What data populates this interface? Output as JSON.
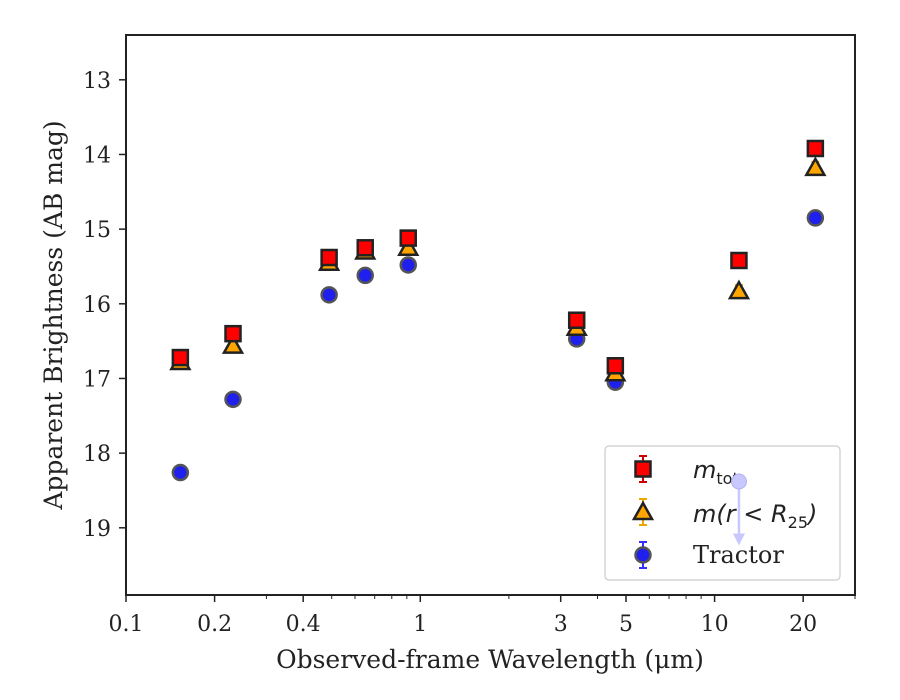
{
  "chart_data": {
    "type": "scatter",
    "xscale": "log",
    "xlim": [
      0.1,
      30
    ],
    "ylim": [
      19.9,
      12.4
    ],
    "y_inverted": true,
    "xlabel": "Observed-frame Wavelength (μm)",
    "ylabel": "Apparent Brightness (AB mag)",
    "xtick_labels": [
      {
        "value": 0.1,
        "label": "0.1"
      },
      {
        "value": 0.2,
        "label": "0.2"
      },
      {
        "value": 0.4,
        "label": "0.4"
      },
      {
        "value": 1,
        "label": "1"
      },
      {
        "value": 3,
        "label": "3"
      },
      {
        "value": 5,
        "label": "5"
      },
      {
        "value": 10,
        "label": "10"
      },
      {
        "value": 20,
        "label": "20"
      }
    ],
    "ytick_labels": [
      {
        "value": 13,
        "label": "13"
      },
      {
        "value": 14,
        "label": "14"
      },
      {
        "value": 15,
        "label": "15"
      },
      {
        "value": 16,
        "label": "16"
      },
      {
        "value": 17,
        "label": "17"
      },
      {
        "value": 18,
        "label": "18"
      },
      {
        "value": 19,
        "label": "19"
      }
    ],
    "legend_position": "lower right",
    "series": [
      {
        "legend_label": "m_tot",
        "marker": "square",
        "face": "#ff0000",
        "edge": "#222222",
        "err": "#cc0000",
        "x": [
          0.153,
          0.231,
          0.49,
          0.65,
          0.91,
          3.4,
          4.6,
          12.1,
          22
        ],
        "y": [
          16.72,
          16.4,
          15.38,
          15.25,
          15.12,
          16.22,
          16.83,
          15.42,
          13.92
        ]
      },
      {
        "legend_label": "m(r<R25)",
        "marker": "triangle",
        "face": "#ffa500",
        "edge": "#222222",
        "err": "#e8a800",
        "x": [
          0.153,
          0.231,
          0.49,
          0.65,
          0.91,
          3.4,
          4.6,
          12.1,
          22
        ],
        "y": [
          16.78,
          16.56,
          15.45,
          15.3,
          15.25,
          16.32,
          16.93,
          15.83,
          14.18
        ]
      },
      {
        "legend_label": "Tractor",
        "marker": "circle",
        "face": "#2020ee",
        "edge": "#555555",
        "err": "#3030ff",
        "x": [
          0.153,
          0.231,
          0.49,
          0.65,
          0.91,
          3.4,
          4.6,
          22
        ],
        "y": [
          18.26,
          17.28,
          15.88,
          15.62,
          15.48,
          16.47,
          17.05,
          14.85
        ]
      }
    ],
    "upper_limit": {
      "x": 12.1,
      "y": 18.38,
      "color": "#c8c8ff"
    }
  },
  "legend": {
    "m_tot": {
      "base": "m",
      "sub": "tot"
    },
    "m_r25": {
      "base": "m(r < R",
      "sub": "25",
      "close": ")"
    },
    "tractor": "Tractor"
  }
}
